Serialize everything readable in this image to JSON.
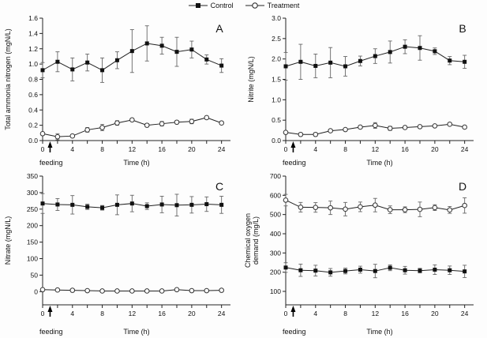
{
  "figure": {
    "background": "#fdfdfd",
    "axis_color": "#222222",
    "line_color": "#222222",
    "errorbar_color": "#666666",
    "marker_fill": "#111111",
    "marker_stroke": "#333333",
    "text_color": "#111111"
  },
  "legend": {
    "position": "top-center",
    "items": [
      {
        "label": "Control",
        "marker": "square-filled"
      },
      {
        "label": "Treatment",
        "marker": "circle-open"
      }
    ]
  },
  "chart_data": [
    {
      "type": "line",
      "panel_label": "A",
      "ylabel": "Total ammonia nitrogen (mgN/L)",
      "xlabel": "Time (h)",
      "annotation": {
        "text": "feeding",
        "x": 1
      },
      "grid": false,
      "xlim": [
        0,
        25.2
      ],
      "ylim": [
        0,
        1.6
      ],
      "yticks": [
        0,
        0.2,
        0.4,
        0.6,
        0.8,
        1.0,
        1.2,
        1.4,
        1.6
      ],
      "ydecimals": 1,
      "xticks": [
        0,
        2,
        4,
        6,
        8,
        10,
        12,
        14,
        16,
        18,
        20,
        22,
        24
      ],
      "xtick_label_every": 4,
      "x": [
        0,
        2,
        4,
        6,
        8,
        10,
        12,
        14,
        16,
        18,
        20,
        22,
        24
      ],
      "series": [
        {
          "name": "Control",
          "marker": "square-filled",
          "values": [
            0.92,
            1.03,
            0.93,
            1.02,
            0.92,
            1.05,
            1.17,
            1.27,
            1.24,
            1.16,
            1.19,
            1.06,
            0.98
          ],
          "errors": [
            0.1,
            0.13,
            0.15,
            0.11,
            0.16,
            0.11,
            0.28,
            0.23,
            0.11,
            0.19,
            0.11,
            0.06,
            0.09
          ]
        },
        {
          "name": "Treatment",
          "marker": "circle-open",
          "values": [
            0.09,
            0.05,
            0.06,
            0.14,
            0.17,
            0.23,
            0.27,
            0.2,
            0.22,
            0.24,
            0.25,
            0.3,
            0.23
          ],
          "errors": [
            0.02,
            0.04,
            0.02,
            0.03,
            0.04,
            0.03,
            0.02,
            0.02,
            0.03,
            0.02,
            0.03,
            0.02,
            0.02
          ]
        }
      ]
    },
    {
      "type": "line",
      "panel_label": "B",
      "ylabel": "Nitrite (mgN/L)",
      "xlabel": "Time (h)",
      "annotation": {
        "text": "feeding",
        "x": 1
      },
      "grid": false,
      "xlim": [
        0,
        25.2
      ],
      "ylim": [
        0,
        3.0
      ],
      "yticks": [
        0,
        0.5,
        1.0,
        1.5,
        2.0,
        2.5,
        3.0
      ],
      "ydecimals": 1,
      "xticks": [
        0,
        2,
        4,
        6,
        8,
        10,
        12,
        14,
        16,
        18,
        20,
        22,
        24
      ],
      "xtick_label_every": 4,
      "x": [
        0,
        2,
        4,
        6,
        8,
        10,
        12,
        14,
        16,
        18,
        20,
        22,
        24
      ],
      "series": [
        {
          "name": "Control",
          "marker": "square-filled",
          "values": [
            1.82,
            1.93,
            1.83,
            1.91,
            1.82,
            1.95,
            2.07,
            2.17,
            2.3,
            2.27,
            2.19,
            1.96,
            1.93
          ],
          "errors": [
            0.34,
            0.43,
            0.29,
            0.37,
            0.24,
            0.12,
            0.18,
            0.27,
            0.17,
            0.3,
            0.08,
            0.1,
            0.16
          ]
        },
        {
          "name": "Treatment",
          "marker": "circle-open",
          "values": [
            0.2,
            0.15,
            0.15,
            0.24,
            0.27,
            0.33,
            0.37,
            0.3,
            0.32,
            0.34,
            0.36,
            0.4,
            0.33
          ],
          "errors": [
            0.02,
            0.03,
            0.04,
            0.03,
            0.03,
            0.03,
            0.07,
            0.05,
            0.03,
            0.04,
            0.03,
            0.03,
            0.03
          ]
        }
      ]
    },
    {
      "type": "line",
      "panel_label": "C",
      "ylabel": "Nitrate (mgN/L)",
      "xlabel": "Time (h)",
      "annotation": {
        "text": "feeding",
        "x": 1
      },
      "grid": false,
      "xlim": [
        0,
        25.2
      ],
      "ylim": [
        -40,
        350
      ],
      "yticks": [
        0,
        50,
        100,
        150,
        200,
        250,
        300,
        350
      ],
      "ydecimals": 0,
      "xticks": [
        0,
        2,
        4,
        6,
        8,
        10,
        12,
        14,
        16,
        18,
        20,
        22,
        24
      ],
      "xtick_label_every": 4,
      "x": [
        0,
        2,
        4,
        6,
        8,
        10,
        12,
        14,
        16,
        18,
        20,
        22,
        24
      ],
      "series": [
        {
          "name": "Control",
          "marker": "square-filled",
          "values": [
            267,
            264,
            263,
            257,
            254,
            263,
            267,
            259,
            264,
            262,
            263,
            265,
            263
          ],
          "errors": [
            30,
            18,
            28,
            8,
            7,
            30,
            25,
            10,
            25,
            33,
            25,
            22,
            26
          ]
        },
        {
          "name": "Treatment",
          "marker": "circle-open",
          "values": [
            6,
            5,
            4,
            3,
            2,
            2,
            2,
            2,
            2,
            6,
            3,
            3,
            4
          ],
          "errors": [
            3,
            2,
            2,
            1,
            1,
            1,
            1,
            1,
            1,
            2,
            1,
            1,
            1
          ]
        }
      ]
    },
    {
      "type": "line",
      "panel_label": "D",
      "ylabel": "Chemical oxygen\ndemand (mg/L)",
      "xlabel": "Time (h)",
      "annotation": {
        "text": "feeding",
        "x": 1
      },
      "grid": false,
      "xlim": [
        0,
        25.2
      ],
      "ylim": [
        30,
        700
      ],
      "yticks": [
        100,
        200,
        300,
        400,
        500,
        600,
        700
      ],
      "ydecimals": 0,
      "xticks": [
        0,
        2,
        4,
        6,
        8,
        10,
        12,
        14,
        16,
        18,
        20,
        22,
        24
      ],
      "xtick_label_every": 4,
      "x": [
        0,
        2,
        4,
        6,
        8,
        10,
        12,
        14,
        16,
        18,
        20,
        22,
        24
      ],
      "series": [
        {
          "name": "Control",
          "marker": "square-filled",
          "values": [
            224,
            210,
            208,
            199,
            206,
            213,
            206,
            223,
            210,
            208,
            213,
            210,
            204
          ],
          "errors": [
            25,
            32,
            28,
            20,
            15,
            18,
            35,
            15,
            20,
            12,
            25,
            22,
            32
          ]
        },
        {
          "name": "Treatment",
          "marker": "circle-open",
          "values": [
            575,
            538,
            537,
            535,
            528,
            540,
            549,
            525,
            525,
            527,
            536,
            524,
            547
          ],
          "errors": [
            30,
            25,
            25,
            35,
            35,
            25,
            35,
            20,
            15,
            38,
            15,
            18,
            40
          ]
        }
      ]
    }
  ]
}
